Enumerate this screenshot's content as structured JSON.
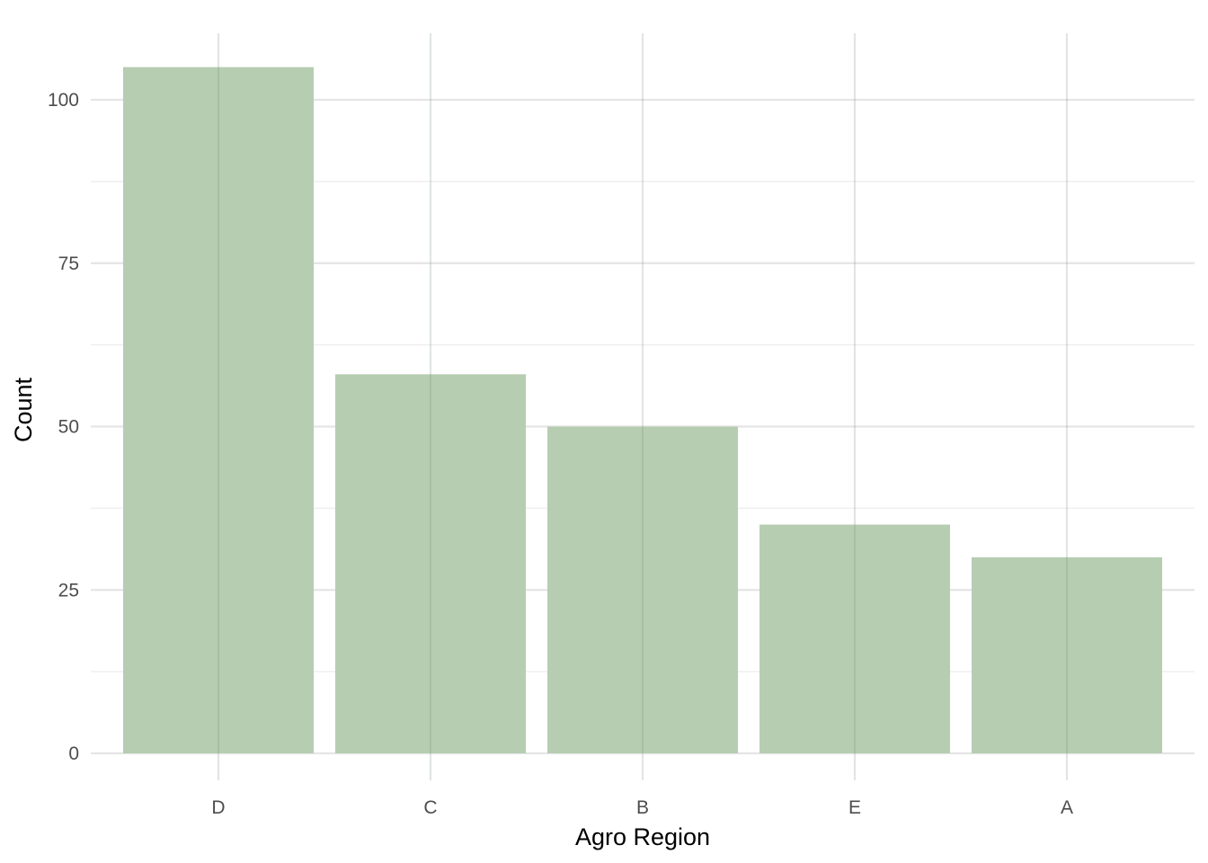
{
  "chart_data": {
    "type": "bar",
    "categories": [
      "D",
      "C",
      "B",
      "E",
      "A"
    ],
    "values": [
      105,
      58,
      50,
      35,
      30
    ],
    "xlabel": "Agro Region",
    "ylabel": "Count",
    "ylim": [
      0,
      110
    ],
    "yticks": [
      0,
      25,
      50,
      75,
      100
    ],
    "grid": true,
    "bar_color": "#b6cdb2"
  }
}
